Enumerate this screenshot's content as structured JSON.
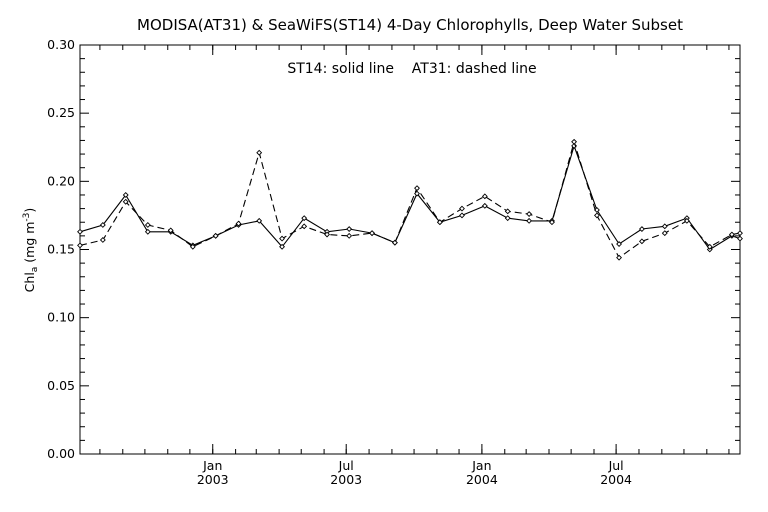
{
  "chart_data": {
    "type": "line",
    "title": "MODISA(AT31) & SeaWiFS(ST14) 4-Day Chlorophylls, Deep Water Subset",
    "annotation": "ST14: solid line    AT31: dashed line",
    "ylabel": {
      "main": "Chl",
      "sub": "a",
      "unit_start": " (mg m",
      "unit_sup": "-3",
      "unit_end": ")"
    },
    "ylim": [
      0.0,
      0.3
    ],
    "y_ticks": [
      "0.00",
      "0.05",
      "0.10",
      "0.15",
      "0.20",
      "0.25",
      "0.30"
    ],
    "x_ticks": [
      {
        "month": "Jan",
        "year": "2003",
        "date": "2003-01-01"
      },
      {
        "month": "Jul",
        "year": "2003",
        "date": "2003-07-01"
      },
      {
        "month": "Jan",
        "year": "2004",
        "date": "2004-01-01"
      },
      {
        "month": "Jul",
        "year": "2004",
        "date": "2004-07-01"
      }
    ],
    "xlim": [
      "2002-07-05",
      "2004-12-16"
    ],
    "x": [
      "2002-07-05",
      "2002-08-05",
      "2002-09-05",
      "2002-10-05",
      "2002-11-05",
      "2002-12-05",
      "2003-01-05",
      "2003-02-05",
      "2003-03-05",
      "2003-04-05",
      "2003-05-05",
      "2003-06-05",
      "2003-07-05",
      "2003-08-05",
      "2003-09-05",
      "2003-10-05",
      "2003-11-05",
      "2003-12-05",
      "2004-01-05",
      "2004-02-05",
      "2004-03-05",
      "2004-04-05",
      "2004-05-05",
      "2004-06-05",
      "2004-07-05",
      "2004-08-05",
      "2004-09-05",
      "2004-10-05",
      "2004-11-05",
      "2004-12-05",
      "2004-12-16"
    ],
    "series": [
      {
        "name": "ST14",
        "style": "solid",
        "values": [
          0.163,
          0.168,
          0.19,
          0.163,
          0.163,
          0.153,
          0.16,
          0.168,
          0.171,
          0.152,
          0.173,
          0.163,
          0.165,
          0.162,
          0.155,
          0.191,
          0.17,
          0.175,
          0.182,
          0.173,
          0.171,
          0.171,
          0.226,
          0.179,
          0.154,
          0.165,
          0.167,
          0.173,
          0.15,
          0.16,
          0.158
        ]
      },
      {
        "name": "AT31",
        "style": "dashed",
        "values": [
          0.153,
          0.157,
          0.185,
          0.168,
          0.164,
          0.152,
          0.16,
          0.169,
          0.221,
          0.158,
          0.167,
          0.161,
          0.16,
          0.162,
          0.155,
          0.195,
          0.17,
          0.18,
          0.189,
          0.178,
          0.176,
          0.17,
          0.229,
          0.175,
          0.144,
          0.156,
          0.162,
          0.171,
          0.152,
          0.161,
          0.162
        ]
      }
    ],
    "grid": false,
    "legend": "annotation text top-center"
  }
}
